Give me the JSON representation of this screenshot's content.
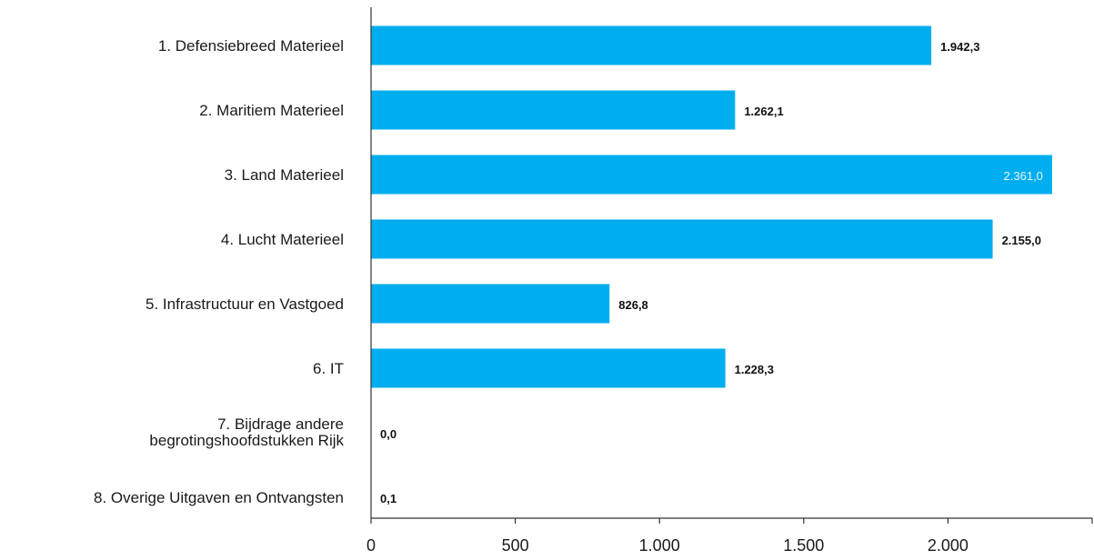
{
  "colors": {
    "bar": "#00AEEF",
    "axis": "#333333"
  },
  "chart_data": {
    "type": "bar",
    "orientation": "horizontal",
    "categories": [
      [
        "1. Defensiebreed Materieel"
      ],
      [
        "2. Maritiem Materieel"
      ],
      [
        "3. Land Materieel"
      ],
      [
        "4. Lucht Materieel"
      ],
      [
        "5. Infrastructuur en Vastgoed"
      ],
      [
        "6. IT"
      ],
      [
        "7. Bijdrage andere",
        "begrotingshoofdstukken Rijk"
      ],
      [
        "8. Overige Uitgaven en Ontvangsten"
      ]
    ],
    "values": [
      1942.3,
      1262.1,
      2361.0,
      2155.0,
      826.8,
      1228.3,
      0.0,
      0.1
    ],
    "value_labels": [
      "1.942,3",
      "1.262,1",
      "2.361,0",
      "2.155,0",
      "826,8",
      "1.228,3",
      "0,0",
      "0,1"
    ],
    "label_inside": [
      false,
      false,
      true,
      false,
      false,
      false,
      false,
      false
    ],
    "xlim": [
      0,
      2500
    ],
    "ticks": [
      0,
      500,
      1000,
      1500,
      2000,
      2500
    ],
    "tick_labels": [
      "0",
      "500",
      "1.000",
      "1.500",
      "2.000",
      ""
    ],
    "title": "",
    "xlabel": "",
    "ylabel": "",
    "grid": false,
    "legend": "none"
  }
}
